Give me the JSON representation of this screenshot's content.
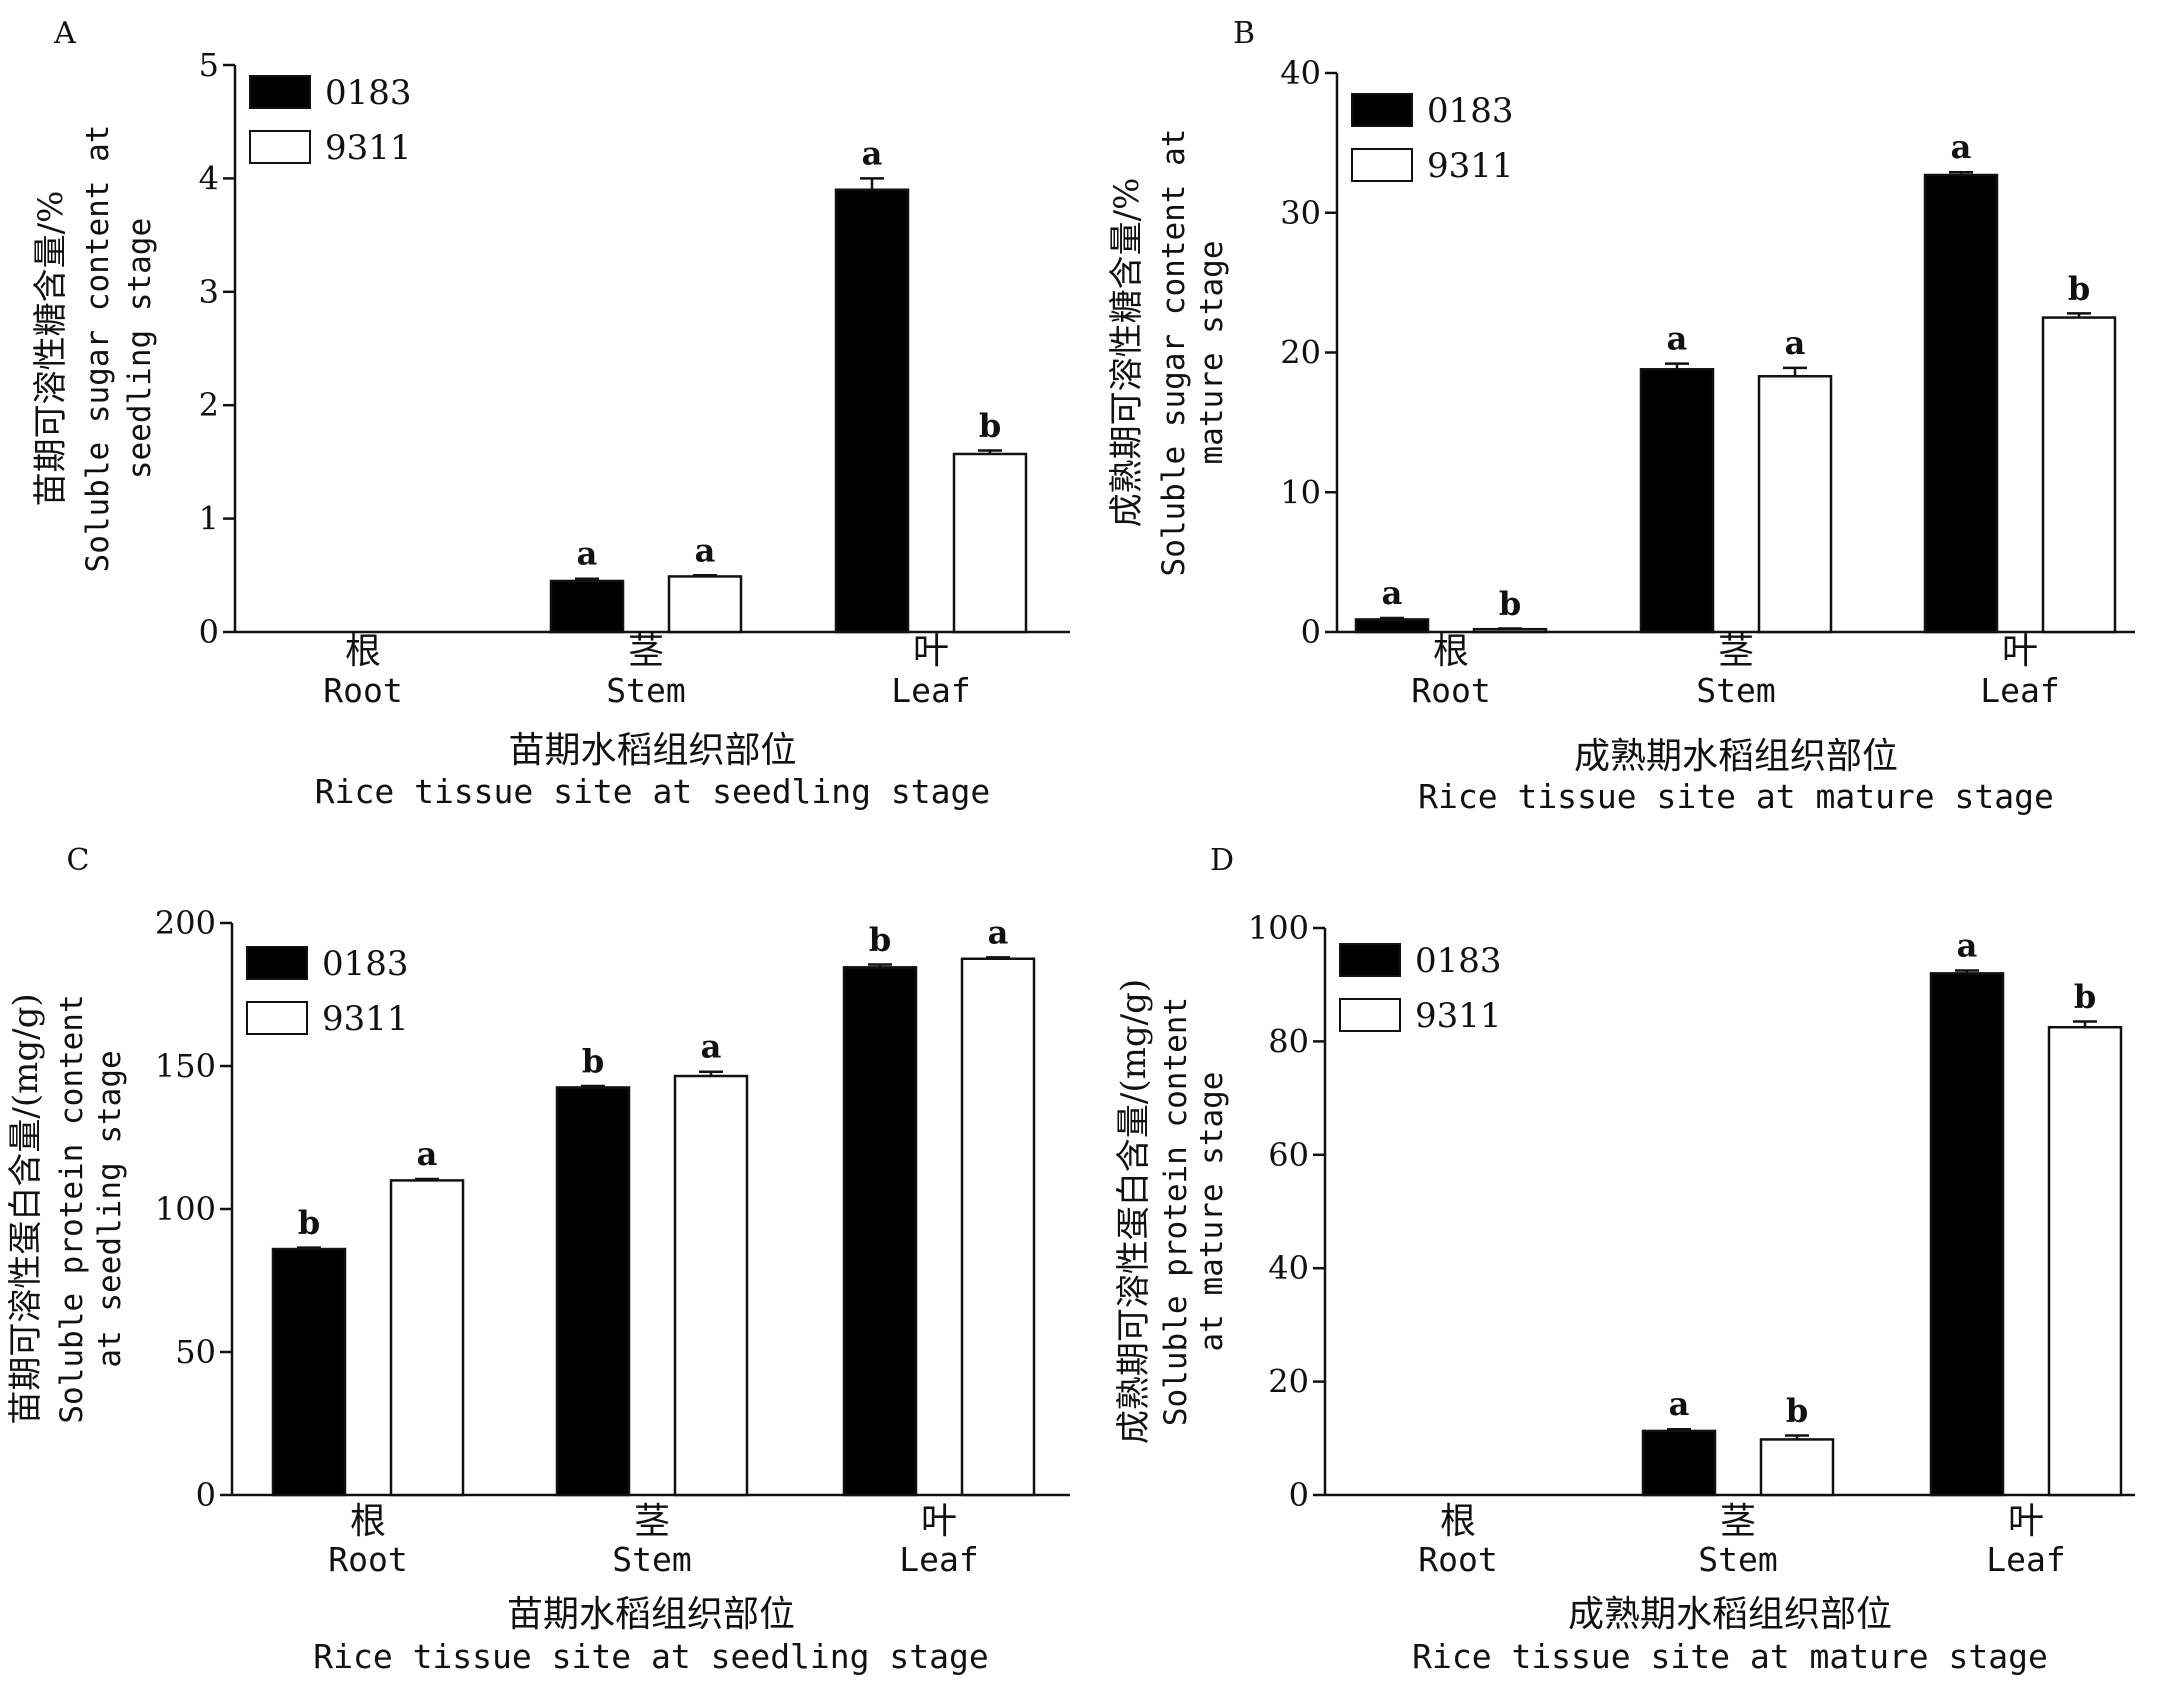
{
  "chart_data": [
    {
      "panel": "A",
      "type": "bar",
      "categories": [
        {
          "cn": "根",
          "en": "Root"
        },
        {
          "cn": "茎",
          "en": "Stem"
        },
        {
          "cn": "叶",
          "en": "Leaf"
        }
      ],
      "series": [
        {
          "name": "0183",
          "color": "#000000",
          "values": [
            0,
            0.45,
            3.9
          ],
          "errors": [
            0,
            0.02,
            0.1
          ],
          "letters": [
            "",
            "a",
            "a"
          ]
        },
        {
          "name": "9311",
          "color": "#ffffff",
          "values": [
            0,
            0.49,
            1.57
          ],
          "errors": [
            0,
            0.01,
            0.03
          ],
          "letters": [
            "",
            "a",
            "b"
          ]
        }
      ],
      "ylim": [
        0,
        5
      ],
      "yticks": [
        "0",
        "1",
        "2",
        "3",
        "4",
        "5"
      ],
      "ylabel_cn": "苗期可溶性糖含量/%",
      "ylabel_en_1": "Soluble sugar content at",
      "ylabel_en_2": "seedling stage",
      "xlabel_cn": "苗期水稻组织部位",
      "xlabel_en": "Rice tissue site at seedling stage",
      "legend_position": "top-left"
    },
    {
      "panel": "B",
      "type": "bar",
      "categories": [
        {
          "cn": "根",
          "en": "Root"
        },
        {
          "cn": "茎",
          "en": "Stem"
        },
        {
          "cn": "叶",
          "en": "Leaf"
        }
      ],
      "series": [
        {
          "name": "0183",
          "color": "#000000",
          "values": [
            0.9,
            18.8,
            32.7
          ],
          "errors": [
            0.1,
            0.4,
            0.2
          ],
          "letters": [
            "a",
            "a",
            "a"
          ]
        },
        {
          "name": "9311",
          "color": "#ffffff",
          "values": [
            0.2,
            18.3,
            22.5
          ],
          "errors": [
            0.05,
            0.6,
            0.3
          ],
          "letters": [
            "b",
            "a",
            "b"
          ]
        }
      ],
      "ylim": [
        0,
        40
      ],
      "yticks": [
        "0",
        "10",
        "20",
        "30",
        "40"
      ],
      "ylabel_cn": "成熟期可溶性糖含量/%",
      "ylabel_en_1": "Soluble sugar content at",
      "ylabel_en_2": "mature stage",
      "xlabel_cn": "成熟期水稻组织部位",
      "xlabel_en": "Rice tissue site at mature stage",
      "legend_position": "top-left"
    },
    {
      "panel": "C",
      "type": "bar",
      "categories": [
        {
          "cn": "根",
          "en": "Root"
        },
        {
          "cn": "茎",
          "en": "Stem"
        },
        {
          "cn": "叶",
          "en": "Leaf"
        }
      ],
      "series": [
        {
          "name": "0183",
          "color": "#000000",
          "values": [
            86,
            142.5,
            184.5
          ],
          "errors": [
            0.5,
            0.5,
            1
          ],
          "letters": [
            "b",
            "b",
            "b"
          ]
        },
        {
          "name": "9311",
          "color": "#ffffff",
          "values": [
            110,
            146.5,
            187.5
          ],
          "errors": [
            0.5,
            1.5,
            0.5
          ],
          "letters": [
            "a",
            "a",
            "a"
          ]
        }
      ],
      "ylim": [
        0,
        200
      ],
      "yticks": [
        "0",
        "50",
        "100",
        "150",
        "200"
      ],
      "ylabel_cn": "苗期可溶性蛋白含量/(mg/g)",
      "ylabel_en_1": "Soluble protein content",
      "ylabel_en_2": "at seedling stage",
      "xlabel_cn": "苗期水稻组织部位",
      "xlabel_en": "Rice tissue site at seedling stage",
      "legend_position": "top-left"
    },
    {
      "panel": "D",
      "type": "bar",
      "categories": [
        {
          "cn": "根",
          "en": "Root"
        },
        {
          "cn": "茎",
          "en": "Stem"
        },
        {
          "cn": "叶",
          "en": "Leaf"
        }
      ],
      "series": [
        {
          "name": "0183",
          "color": "#000000",
          "values": [
            0,
            11.3,
            92
          ],
          "errors": [
            0,
            0.3,
            0.5
          ],
          "letters": [
            "",
            "a",
            "a"
          ]
        },
        {
          "name": "9311",
          "color": "#ffffff",
          "values": [
            0,
            9.8,
            82.5
          ],
          "errors": [
            0,
            0.7,
            1
          ],
          "letters": [
            "",
            "b",
            "b"
          ]
        }
      ],
      "ylim": [
        0,
        100
      ],
      "yticks": [
        "0",
        "20",
        "40",
        "60",
        "80",
        "100"
      ],
      "ylabel_cn": "成熟期可溶性蛋白含量/(mg/g)",
      "ylabel_en_1": "Soluble protein content",
      "ylabel_en_2": "at mature stage",
      "xlabel_cn": "成熟期水稻组织部位",
      "xlabel_en": "Rice tissue site at mature stage",
      "legend_position": "top-left"
    }
  ]
}
